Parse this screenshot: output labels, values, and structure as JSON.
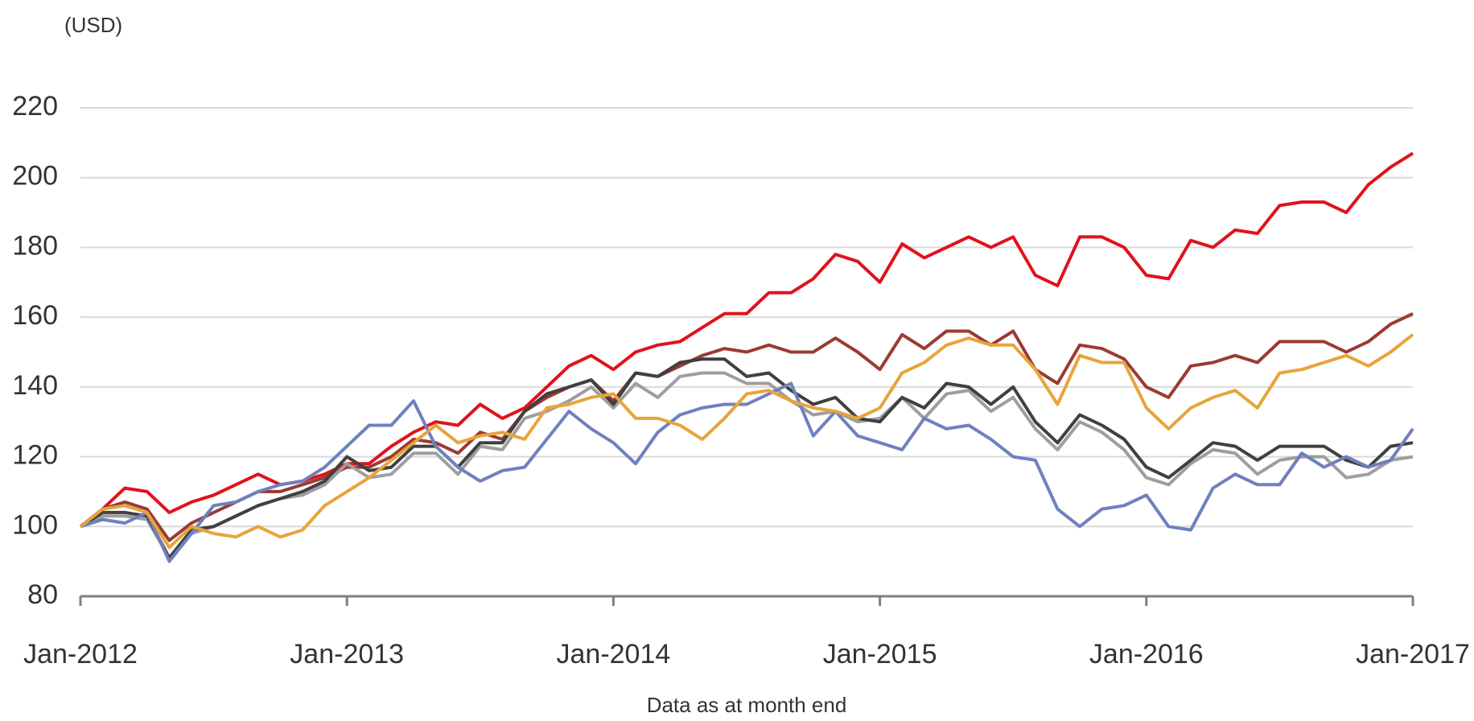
{
  "chart_data": {
    "type": "line",
    "y_unit_label": "(USD)",
    "x_label": "Data as at month end",
    "categories": [
      "Jan-2012",
      null,
      null,
      null,
      null,
      null,
      null,
      null,
      null,
      null,
      null,
      null,
      "Jan-2013",
      null,
      null,
      null,
      null,
      null,
      null,
      null,
      null,
      null,
      null,
      null,
      "Jan-2014",
      null,
      null,
      null,
      null,
      null,
      null,
      null,
      null,
      null,
      null,
      null,
      "Jan-2015",
      null,
      null,
      null,
      null,
      null,
      null,
      null,
      null,
      null,
      null,
      null,
      "Jan-2016",
      null,
      null,
      null,
      null,
      null,
      null,
      null,
      null,
      null,
      null,
      null,
      "Jan-2017"
    ],
    "ylim": [
      80,
      220
    ],
    "yticks": [
      80,
      100,
      120,
      140,
      160,
      180,
      200,
      220
    ],
    "grid": true,
    "series": [
      {
        "color": "#e0121b",
        "values": [
          100,
          105,
          111,
          110,
          104,
          107,
          109,
          112,
          115,
          112,
          113,
          115,
          118,
          118,
          123,
          127,
          130,
          129,
          135,
          131,
          134,
          140,
          146,
          149,
          145,
          150,
          152,
          153,
          157,
          161,
          161,
          167,
          167,
          171,
          178,
          176,
          170,
          181,
          177,
          180,
          183,
          180,
          183,
          172,
          169,
          183,
          183,
          180,
          172,
          171,
          182,
          180,
          185,
          184,
          192,
          193,
          193,
          190,
          198,
          203,
          207
        ]
      },
      {
        "color": "#9b3a33",
        "values": [
          100,
          105,
          107,
          105,
          96,
          101,
          104,
          107,
          110,
          110,
          112,
          114,
          117,
          117,
          120,
          125,
          124,
          121,
          127,
          125,
          133,
          137,
          140,
          142,
          136,
          144,
          143,
          146,
          149,
          151,
          150,
          152,
          150,
          150,
          154,
          150,
          145,
          155,
          151,
          156,
          156,
          152,
          156,
          145,
          141,
          152,
          151,
          148,
          140,
          137,
          146,
          147,
          149,
          147,
          153,
          153,
          153,
          150,
          153,
          158,
          161
        ]
      },
      {
        "color": "#9e9e9e",
        "values": [
          100,
          103,
          103,
          102,
          91,
          98,
          100,
          103,
          106,
          108,
          109,
          112,
          118,
          114,
          115,
          121,
          121,
          115,
          123,
          122,
          131,
          133,
          136,
          140,
          134,
          141,
          137,
          143,
          144,
          144,
          141,
          141,
          136,
          132,
          133,
          130,
          131,
          137,
          131,
          138,
          139,
          133,
          137,
          128,
          122,
          130,
          127,
          122,
          114,
          112,
          118,
          122,
          121,
          115,
          119,
          120,
          120,
          114,
          115,
          119,
          120
        ]
      },
      {
        "color": "#404040",
        "values": [
          100,
          104,
          104,
          103,
          91,
          99,
          100,
          103,
          106,
          108,
          110,
          113,
          120,
          116,
          117,
          123,
          123,
          117,
          124,
          124,
          133,
          138,
          140,
          142,
          135,
          144,
          143,
          147,
          148,
          148,
          143,
          144,
          139,
          135,
          137,
          131,
          130,
          137,
          134,
          141,
          140,
          135,
          140,
          130,
          124,
          132,
          129,
          125,
          117,
          114,
          119,
          124,
          123,
          119,
          123,
          123,
          123,
          119,
          117,
          123,
          124
        ]
      },
      {
        "color": "#6f80c0",
        "values": [
          100,
          102,
          101,
          104,
          90,
          98,
          106,
          107,
          110,
          112,
          113,
          117,
          123,
          129,
          129,
          136,
          123,
          117,
          113,
          116,
          117,
          125,
          133,
          128,
          124,
          118,
          127,
          132,
          134,
          135,
          135,
          138,
          141,
          126,
          133,
          126,
          124,
          122,
          131,
          128,
          129,
          125,
          120,
          119,
          105,
          100,
          105,
          106,
          109,
          100,
          99,
          111,
          115,
          112,
          112,
          121,
          117,
          120,
          117,
          119,
          128
        ]
      },
      {
        "color": "#e8a43a",
        "values": [
          100,
          105,
          106,
          104,
          94,
          100,
          98,
          97,
          100,
          97,
          99,
          106,
          110,
          114,
          119,
          124,
          129,
          124,
          126,
          127,
          125,
          134,
          135,
          137,
          138,
          131,
          131,
          129,
          125,
          131,
          138,
          139,
          136,
          134,
          133,
          131,
          134,
          144,
          147,
          152,
          154,
          152,
          152,
          145,
          135,
          149,
          147,
          147,
          134,
          128,
          134,
          137,
          139,
          134,
          144,
          145,
          147,
          149,
          146,
          150,
          155
        ]
      }
    ]
  }
}
